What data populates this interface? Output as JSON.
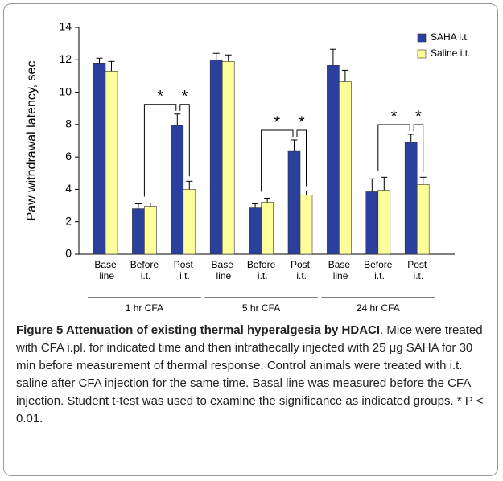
{
  "chart_data": {
    "type": "bar",
    "ylabel": "Paw withdrawal latency, sec",
    "categories": [
      "Base line",
      "Before i.t.",
      "Post i.t.",
      "Base line",
      "Before i.t.",
      "Post i.t.",
      "Base line",
      "Before i.t.",
      "Post i.t."
    ],
    "groups": [
      "1 hr CFA",
      "5 hr CFA",
      "24 hr CFA"
    ],
    "series": [
      {
        "name": "SAHA i.t.",
        "color": "#2b3f9c",
        "values": [
          11.8,
          2.8,
          7.95,
          12.0,
          2.9,
          6.35,
          11.65,
          3.85,
          6.9
        ],
        "errors": [
          0.3,
          0.3,
          0.7,
          0.4,
          0.2,
          0.7,
          1.0,
          0.8,
          0.5
        ]
      },
      {
        "name": "Saline i.t.",
        "color": "#ffff99",
        "values": [
          11.3,
          2.95,
          4.0,
          11.9,
          3.2,
          3.65,
          10.65,
          3.95,
          4.3
        ],
        "errors": [
          0.6,
          0.2,
          0.5,
          0.4,
          0.25,
          0.25,
          0.7,
          0.8,
          0.45
        ]
      }
    ],
    "annotations": [
      "*",
      "*",
      "*",
      "*",
      "*",
      "*"
    ],
    "ylim": [
      0,
      14
    ],
    "yticks": [
      0,
      2,
      4,
      6,
      8,
      10,
      12,
      14
    ],
    "legend": "upper right"
  },
  "caption": {
    "title": "Figure 5 Attenuation of existing thermal hyperalgesia by HDACI",
    "text": ". Mice were treated with CFA i.pl. for indicated time and then intrathecally injected with 25 μg SAHA for 30 min before measurement of thermal response. Control animals were treated with i.t. saline after CFA injection for the same time. Basal line was measured before the CFA injection. Student t-test was used to examine the significance as indicated groups. * P < 0.01."
  }
}
